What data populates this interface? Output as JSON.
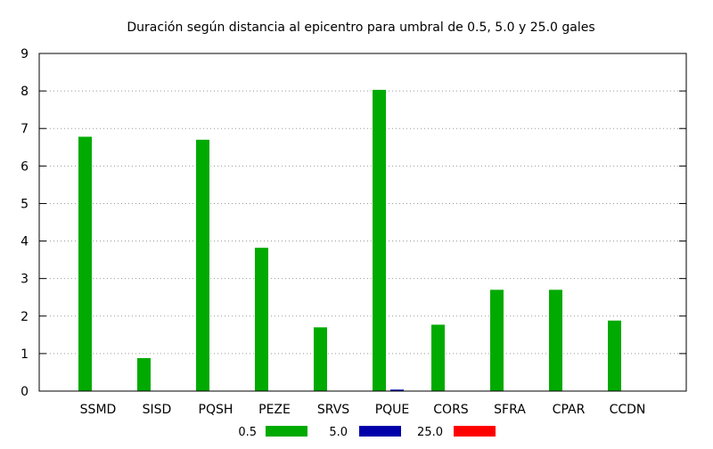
{
  "chart_data": {
    "type": "bar",
    "title": "Duración según distancia al epicentro para umbral de 0.5, 5.0 y 25.0 gales",
    "xlabel": "",
    "ylabel": "",
    "categories": [
      "SSMD",
      "SISD",
      "PQSH",
      "PEZE",
      "SRVS",
      "PQUE",
      "CORS",
      "SFRA",
      "CPAR",
      "CCDN"
    ],
    "ylim": [
      0,
      9
    ],
    "yticks": [
      "0",
      "1",
      "2",
      "3",
      "4",
      "5",
      "6",
      "7",
      "8",
      "9"
    ],
    "grid": true,
    "legend_position": "bottom",
    "series": [
      {
        "name": "0.5",
        "color": "#00aa00",
        "values": [
          6.78,
          0.88,
          6.7,
          3.82,
          1.7,
          8.03,
          1.77,
          2.7,
          2.7,
          1.88
        ]
      },
      {
        "name": "5.0",
        "color": "#0000aa",
        "values": [
          0,
          0,
          0,
          0,
          0,
          0.04,
          0,
          0,
          0,
          0
        ]
      },
      {
        "name": "25.0",
        "color": "#ff0000",
        "values": [
          0,
          0,
          0,
          0,
          0,
          0,
          0,
          0,
          0,
          0
        ]
      }
    ]
  }
}
